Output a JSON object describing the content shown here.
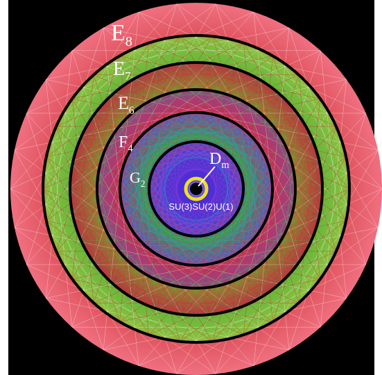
{
  "labels": [
    {
      "base": "E",
      "sub": "8"
    },
    {
      "base": "E",
      "sub": "7"
    },
    {
      "base": "E",
      "sub": "6"
    },
    {
      "base": "F",
      "sub": "4"
    },
    {
      "base": "G",
      "sub": "2"
    },
    {
      "base": "D",
      "sub": "m"
    }
  ],
  "center_label": "SU(3)SU(2)U(1)"
}
